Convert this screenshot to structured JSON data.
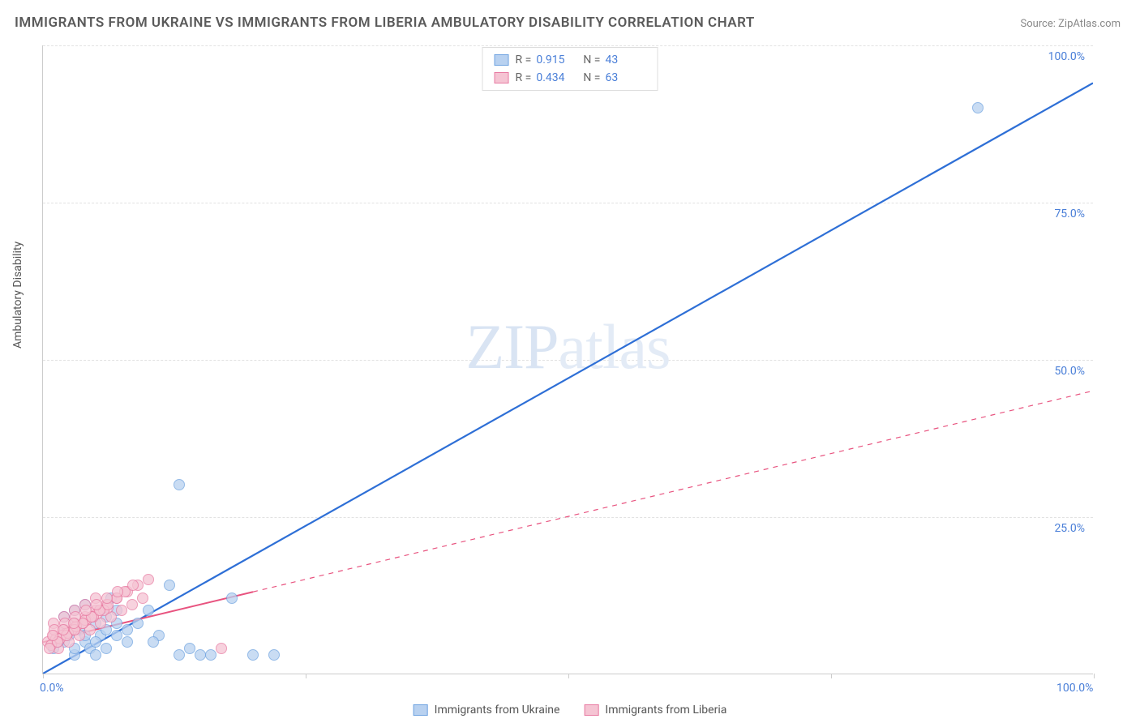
{
  "title": "IMMIGRANTS FROM UKRAINE VS IMMIGRANTS FROM LIBERIA AMBULATORY DISABILITY CORRELATION CHART",
  "source": "Source: ZipAtlas.com",
  "y_axis_label": "Ambulatory Disability",
  "watermark_bold": "ZIP",
  "watermark_thin": "atlas",
  "chart": {
    "type": "scatter",
    "background_color": "#ffffff",
    "grid_color": "#e2e2e2",
    "axis_color": "#cccccc",
    "tick_label_color": "#4a7fd8",
    "xlim": [
      0,
      100
    ],
    "ylim": [
      0,
      100
    ],
    "x_ticks": [
      0,
      25,
      50,
      75,
      100
    ],
    "y_ticks": [
      25,
      50,
      75,
      100
    ],
    "x_tick_labels": {
      "0": "0.0%",
      "100": "100.0%"
    },
    "y_tick_labels": {
      "25": "25.0%",
      "50": "50.0%",
      "75": "75.0%",
      "100": "100.0%"
    },
    "series": [
      {
        "name": "Immigrants from Ukraine",
        "color_fill": "#b8d1f0",
        "color_stroke": "#6fa3e0",
        "marker_radius": 7,
        "line_color": "#2e6fd6",
        "line_width": 2.2,
        "line_dash": "none",
        "line": {
          "x1": 0,
          "y1": 0,
          "x2": 100,
          "y2": 94
        },
        "r_value": "0.915",
        "n_value": "43",
        "points": [
          [
            1,
            4
          ],
          [
            2,
            5
          ],
          [
            3,
            3
          ],
          [
            2.5,
            6
          ],
          [
            3.5,
            7
          ],
          [
            4,
            5
          ],
          [
            5,
            8
          ],
          [
            4.5,
            4
          ],
          [
            6,
            9
          ],
          [
            5.5,
            6
          ],
          [
            7,
            10
          ],
          [
            8,
            7
          ],
          [
            6.5,
            12
          ],
          [
            9,
            8
          ],
          [
            10,
            10
          ],
          [
            11,
            6
          ],
          [
            12,
            14
          ],
          [
            10.5,
            5
          ],
          [
            13,
            3
          ],
          [
            14,
            4
          ],
          [
            15,
            3
          ],
          [
            16,
            3
          ],
          [
            18,
            12
          ],
          [
            20,
            3
          ],
          [
            22,
            3
          ],
          [
            13,
            30
          ],
          [
            2,
            9
          ],
          [
            3,
            10
          ],
          [
            4,
            11
          ],
          [
            5,
            3
          ],
          [
            6,
            4
          ],
          [
            7,
            6
          ],
          [
            8,
            5
          ],
          [
            3,
            4
          ],
          [
            4,
            6
          ],
          [
            5,
            5
          ],
          [
            6,
            7
          ],
          [
            7,
            8
          ],
          [
            2,
            7
          ],
          [
            3,
            8
          ],
          [
            89,
            90
          ],
          [
            1.5,
            5
          ],
          [
            2.2,
            6
          ]
        ]
      },
      {
        "name": "Immigrants from Liberia",
        "color_fill": "#f5c4d3",
        "color_stroke": "#e87ba2",
        "marker_radius": 7,
        "line_color": "#e8537f",
        "line_width": 2,
        "line_dash": "none",
        "solid_line": {
          "x1": 0,
          "y1": 5,
          "x2": 20,
          "y2": 13
        },
        "dash_line": {
          "x1": 20,
          "y1": 13,
          "x2": 100,
          "y2": 45
        },
        "r_value": "0.434",
        "n_value": "63",
        "points": [
          [
            0.5,
            5
          ],
          [
            1,
            6
          ],
          [
            1.5,
            4
          ],
          [
            2,
            7
          ],
          [
            2.5,
            5
          ],
          [
            3,
            8
          ],
          [
            3.5,
            6
          ],
          [
            4,
            9
          ],
          [
            4.5,
            7
          ],
          [
            5,
            10
          ],
          [
            5.5,
            8
          ],
          [
            6,
            11
          ],
          [
            6.5,
            9
          ],
          [
            7,
            12
          ],
          [
            7.5,
            10
          ],
          [
            8,
            13
          ],
          [
            8.5,
            11
          ],
          [
            9,
            14
          ],
          [
            9.5,
            12
          ],
          [
            10,
            15
          ],
          [
            1,
            8
          ],
          [
            2,
            9
          ],
          [
            3,
            10
          ],
          [
            4,
            11
          ],
          [
            5,
            12
          ],
          [
            1.2,
            5.5
          ],
          [
            2.2,
            6.5
          ],
          [
            3.2,
            7.5
          ],
          [
            4.2,
            8.5
          ],
          [
            5.2,
            9.5
          ],
          [
            6.2,
            10.5
          ],
          [
            1.8,
            6
          ],
          [
            2.8,
            7
          ],
          [
            3.8,
            8
          ],
          [
            4.8,
            9
          ],
          [
            5.8,
            10
          ],
          [
            0.8,
            4.5
          ],
          [
            1.6,
            5.5
          ],
          [
            2.4,
            6.5
          ],
          [
            3.2,
            7.5
          ],
          [
            4.0,
            8.5
          ],
          [
            0.6,
            4
          ],
          [
            1.4,
            5
          ],
          [
            2.2,
            6
          ],
          [
            3.0,
            7
          ],
          [
            3.8,
            8
          ],
          [
            4.6,
            9
          ],
          [
            5.4,
            10
          ],
          [
            6.2,
            11
          ],
          [
            7.0,
            12
          ],
          [
            7.8,
            13
          ],
          [
            8.6,
            14
          ],
          [
            1.1,
            7
          ],
          [
            2.1,
            8
          ],
          [
            3.1,
            9
          ],
          [
            4.1,
            10
          ],
          [
            5.1,
            11
          ],
          [
            6.1,
            12
          ],
          [
            7.1,
            13
          ],
          [
            0.9,
            6
          ],
          [
            1.9,
            7
          ],
          [
            2.9,
            8
          ],
          [
            17,
            4
          ]
        ]
      }
    ]
  },
  "legend_top": {
    "r_label": "R  =",
    "n_label": "N  ="
  },
  "legend_bottom": [
    {
      "swatch_fill": "#b8d1f0",
      "swatch_stroke": "#6fa3e0",
      "label": "Immigrants from Ukraine"
    },
    {
      "swatch_fill": "#f5c4d3",
      "swatch_stroke": "#e87ba2",
      "label": "Immigrants from Liberia"
    }
  ]
}
